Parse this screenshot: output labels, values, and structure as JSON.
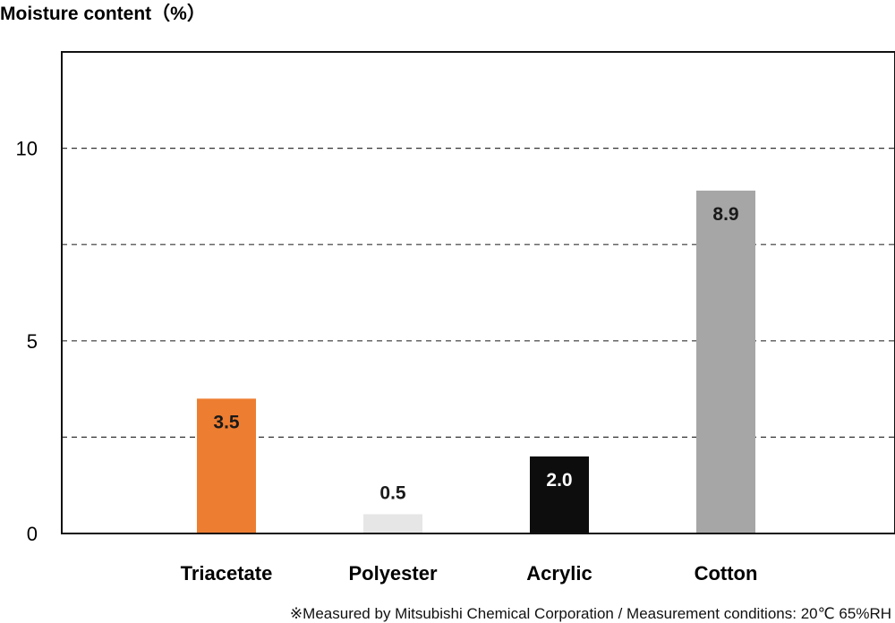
{
  "chart_data": {
    "type": "bar",
    "title": "",
    "ylabel": "Moisture content（%）",
    "xlabel": "",
    "categories": [
      "Triacetate",
      "Polyester",
      "Acrylic",
      "Cotton"
    ],
    "values": [
      3.5,
      0.5,
      2.0,
      8.9
    ],
    "value_labels": [
      "3.5",
      "0.5",
      "2.0",
      "8.9"
    ],
    "bar_colors": [
      "#ED7D31",
      "#E6E6E6",
      "#0D0D0D",
      "#A6A6A6"
    ],
    "label_colors": [
      "#1a1a1a",
      "#1a1a1a",
      "#ffffff",
      "#1a1a1a"
    ],
    "label_inside": [
      true,
      false,
      true,
      true
    ],
    "ylim": [
      0,
      12.5
    ],
    "yticks": [
      0,
      5,
      10
    ],
    "gridlines": [
      2.5,
      5,
      7.5,
      10
    ],
    "grid": "dashed"
  },
  "footnote": "※Measured by Mitsubishi Chemical Corporation / Measurement conditions: 20℃ 65%RH"
}
